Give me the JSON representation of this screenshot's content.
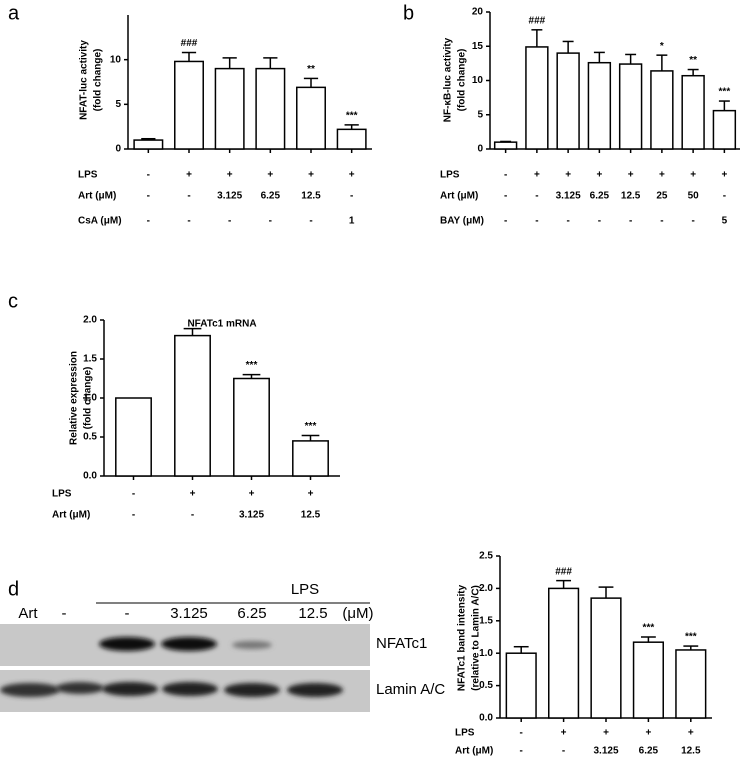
{
  "chart_data": [
    {
      "type": "bar",
      "panel": "a",
      "y_label": [
        "NFAT-luc activity",
        "(fold change)"
      ],
      "values": [
        1.0,
        9.8,
        9.0,
        9.0,
        6.9,
        2.2
      ],
      "errors": [
        0.15,
        1.0,
        1.2,
        1.2,
        1.0,
        0.5
      ],
      "annotations": [
        null,
        "###",
        null,
        null,
        "**",
        "***"
      ],
      "ylim": [
        0,
        15
      ],
      "yticks": [
        0,
        5,
        10
      ],
      "color": "#ffffff",
      "conditions": [
        {
          "label": "LPS",
          "values": [
            "-",
            "+",
            "+",
            "+",
            "+",
            "+"
          ]
        },
        {
          "label": "Art (μM)",
          "values": [
            "-",
            "-",
            "3.125",
            "6.25",
            "12.5",
            "-"
          ]
        },
        {
          "label": "CsA (μM)",
          "values": [
            "-",
            "-",
            "-",
            "-",
            "-",
            "1"
          ]
        }
      ]
    },
    {
      "type": "bar",
      "panel": "b",
      "y_label": [
        "NF-κB-luc activity",
        "(fold change)"
      ],
      "values": [
        1.0,
        14.9,
        14.0,
        12.6,
        12.4,
        11.4,
        10.7,
        5.6
      ],
      "errors": [
        0.1,
        2.5,
        1.7,
        1.5,
        1.4,
        2.3,
        0.9,
        1.4
      ],
      "annotations": [
        null,
        "###",
        null,
        null,
        null,
        "*",
        "**",
        "***"
      ],
      "ylim": [
        0,
        20
      ],
      "yticks": [
        0,
        5,
        10,
        15,
        20
      ],
      "color": "#ffffff",
      "conditions": [
        {
          "label": "LPS",
          "values": [
            "-",
            "+",
            "+",
            "+",
            "+",
            "+",
            "+",
            "+"
          ]
        },
        {
          "label": "Art (μM)",
          "values": [
            "-",
            "-",
            "3.125",
            "6.25",
            "12.5",
            "25",
            "50",
            "-"
          ]
        },
        {
          "label": "BAY (μM)",
          "values": [
            "-",
            "-",
            "-",
            "-",
            "-",
            "-",
            "-",
            "5"
          ]
        }
      ]
    },
    {
      "type": "bar",
      "panel": "c",
      "title": "NFATc1 mRNA",
      "y_label": [
        "Relative expression",
        "(fold change)"
      ],
      "values": [
        1.0,
        1.8,
        1.25,
        0.45
      ],
      "errors": [
        0,
        0.09,
        0.05,
        0.07
      ],
      "annotations": [
        null,
        null,
        "***",
        "***"
      ],
      "ylim": [
        0,
        2
      ],
      "yticks": [
        {
          "value": 0,
          "label": "0.0"
        },
        {
          "value": 0.5,
          "label": "0.5"
        },
        {
          "value": 1,
          "label": "1.0"
        },
        {
          "value": 1.5,
          "label": "1.5"
        },
        {
          "value": 2,
          "label": "2.0"
        }
      ],
      "color": "#ffffff",
      "conditions": [
        {
          "label": "LPS",
          "values": [
            "-",
            "+",
            "+",
            "+"
          ]
        },
        {
          "label": "Art (μM)",
          "values": [
            "-",
            "-",
            "3.125",
            "12.5"
          ]
        }
      ]
    },
    {
      "type": "bar",
      "y_label": [
        "NFATc1 band intensity",
        "(relative to Lamin A/C)"
      ],
      "values": [
        1.0,
        2.0,
        1.85,
        1.17,
        1.05
      ],
      "errors": [
        0.1,
        0.12,
        0.17,
        0.08,
        0.06
      ],
      "annotations": [
        null,
        "###",
        null,
        "***",
        "***"
      ],
      "ylim": [
        0,
        2.5
      ],
      "yticks": [
        {
          "value": 0,
          "label": "0.0"
        },
        {
          "value": 0.5,
          "label": "0.5"
        },
        {
          "value": 1,
          "label": "1.0"
        },
        {
          "value": 1.5,
          "label": "1.5"
        },
        {
          "value": 2,
          "label": "2.0"
        },
        {
          "value": 2.5,
          "label": "2.5"
        }
      ],
      "color": "#ffffff",
      "conditions": [
        {
          "label": "LPS",
          "values": [
            "-",
            "+",
            "+",
            "+",
            "+"
          ]
        },
        {
          "label": "Art (μM)",
          "values": [
            "-",
            "-",
            "3.125",
            "6.25",
            "12.5"
          ]
        }
      ]
    }
  ],
  "blot": {
    "panel": "d",
    "treatment": "LPS",
    "row_label": "Art",
    "lanes": [
      "-",
      "-",
      "3.125",
      "6.25",
      "12.5"
    ],
    "unit": "(μM)",
    "bands": [
      "NFATc1",
      "Lamin A/C"
    ]
  }
}
